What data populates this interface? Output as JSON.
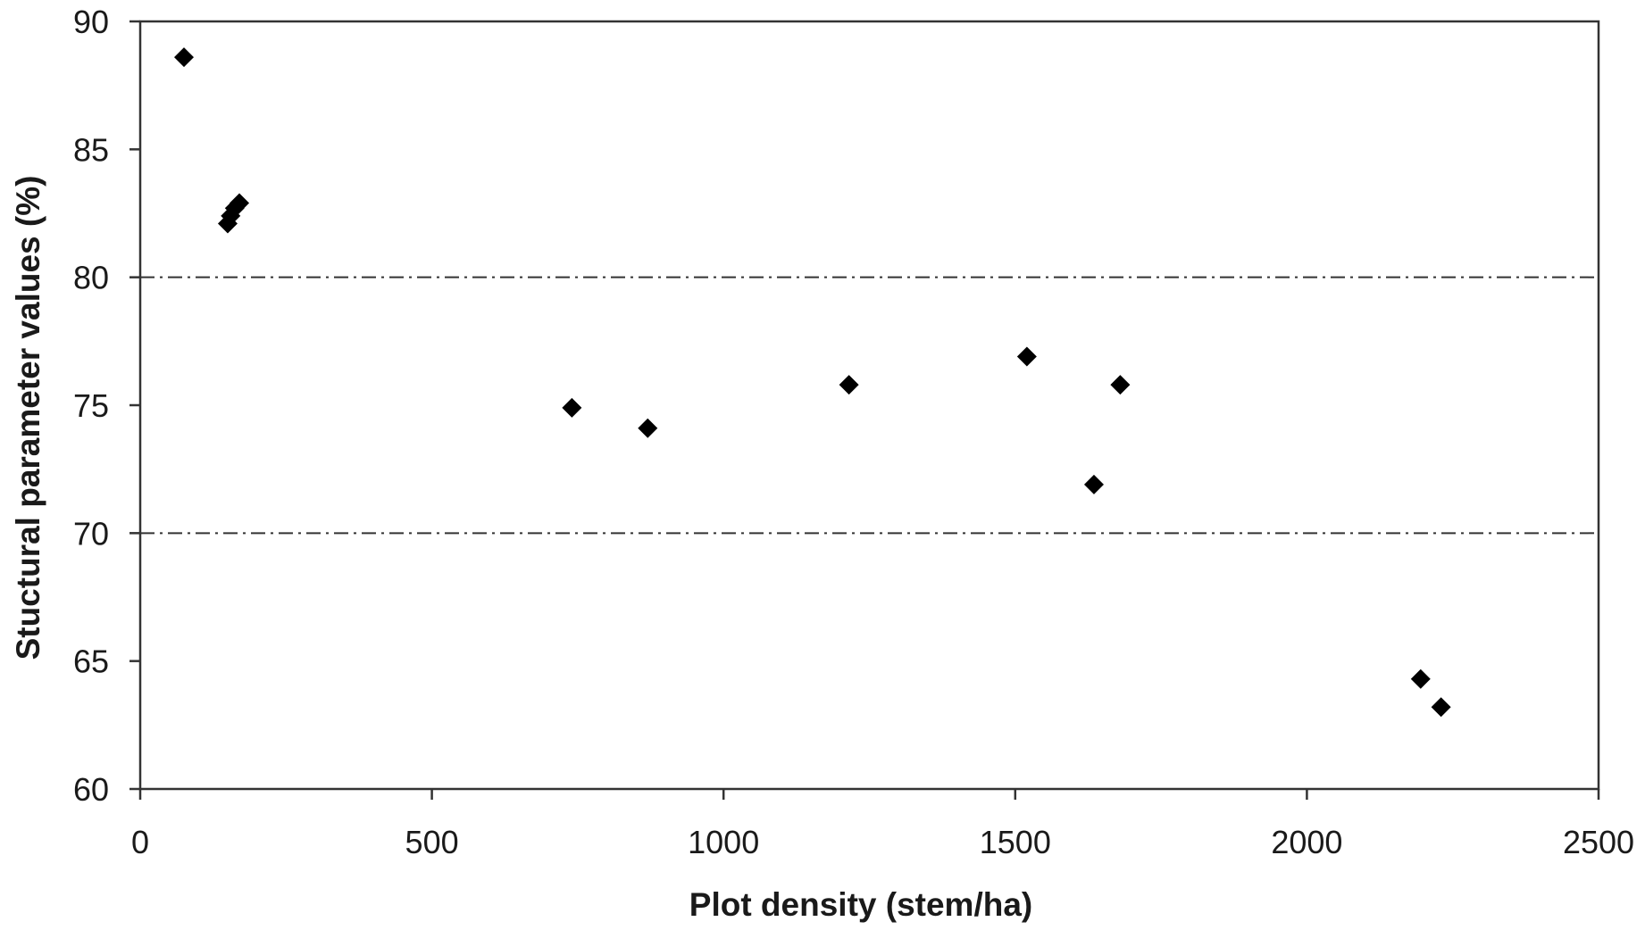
{
  "chart_data": {
    "type": "scatter",
    "title": "",
    "xlabel": "Plot density (stem/ha)",
    "ylabel": "Stuctural parameter values (%)",
    "xlim": [
      0,
      2500
    ],
    "ylim": [
      60,
      90
    ],
    "x_ticks": [
      "0",
      "500",
      "1000",
      "1500",
      "2000",
      "2500"
    ],
    "y_ticks": [
      "60",
      "65",
      "70",
      "75",
      "80",
      "85",
      "90"
    ],
    "grid": false,
    "legend": "none",
    "marker": "diamond",
    "marker_color": "#000000",
    "reference_lines": [
      {
        "axis": "y",
        "value": 80,
        "style": "dash-dot"
      },
      {
        "axis": "y",
        "value": 70,
        "style": "dash-dot"
      }
    ],
    "series": [
      {
        "points": [
          {
            "x": 75,
            "y": 88.6
          },
          {
            "x": 150,
            "y": 82.1
          },
          {
            "x": 155,
            "y": 82.4
          },
          {
            "x": 162,
            "y": 82.7
          },
          {
            "x": 170,
            "y": 82.9
          },
          {
            "x": 740,
            "y": 74.9
          },
          {
            "x": 870,
            "y": 74.1
          },
          {
            "x": 1215,
            "y": 75.8
          },
          {
            "x": 1520,
            "y": 76.9
          },
          {
            "x": 1635,
            "y": 71.9
          },
          {
            "x": 1680,
            "y": 75.8
          },
          {
            "x": 2195,
            "y": 64.3
          },
          {
            "x": 2230,
            "y": 63.2
          }
        ]
      }
    ]
  }
}
